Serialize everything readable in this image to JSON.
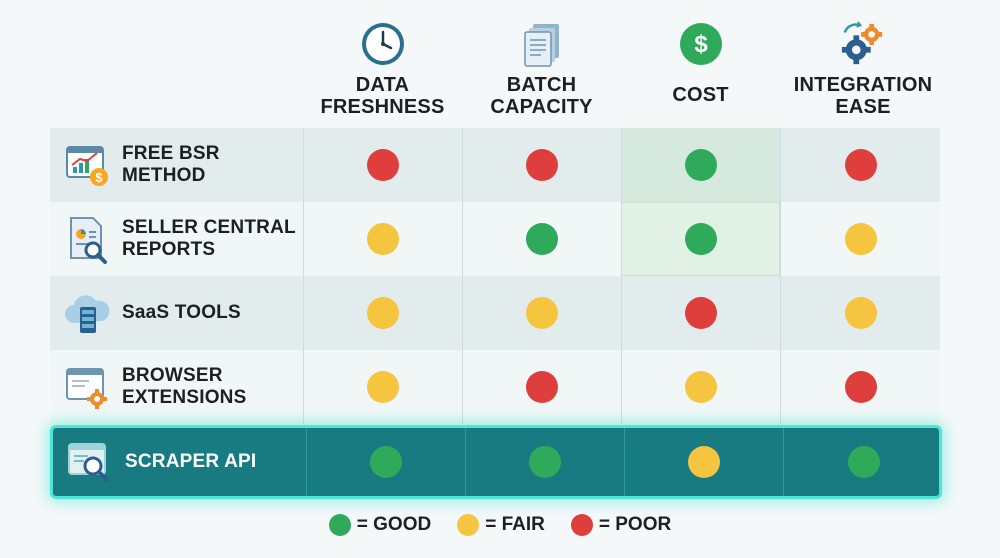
{
  "columns": [
    {
      "label": "DATA\nFRESHNESS",
      "icon": "clock-icon"
    },
    {
      "label": "BATCH\nCAPACITY",
      "icon": "documents-icon"
    },
    {
      "label": "COST",
      "icon": "dollar-icon"
    },
    {
      "label": "INTEGRATION\nEASE",
      "icon": "gears-icon"
    }
  ],
  "rows": [
    {
      "label": "FREE BSR\nMETHOD",
      "icon": "chart-dollar-icon",
      "ratings": [
        "poor",
        "poor",
        "good",
        "poor"
      ]
    },
    {
      "label": "SELLER CENTRAL\nREPORTS",
      "icon": "report-magnifier-icon",
      "ratings": [
        "fair",
        "good",
        "good",
        "fair"
      ]
    },
    {
      "label": "SaaS TOOLS",
      "icon": "cloud-server-icon",
      "ratings": [
        "fair",
        "fair",
        "poor",
        "fair"
      ]
    },
    {
      "label": "BROWSER\nEXTENSIONS",
      "icon": "browser-gear-icon",
      "ratings": [
        "fair",
        "poor",
        "fair",
        "poor"
      ]
    },
    {
      "label": "SCRAPER API",
      "icon": "browser-magnifier-icon",
      "ratings": [
        "good",
        "good",
        "fair",
        "good"
      ]
    }
  ],
  "legend": [
    {
      "key": "good",
      "label": "= GOOD",
      "color": "#2faa5a"
    },
    {
      "key": "fair",
      "label": "= FAIR",
      "color": "#f6c540"
    },
    {
      "key": "poor",
      "label": "= POOR",
      "color": "#de3f3c"
    }
  ]
}
